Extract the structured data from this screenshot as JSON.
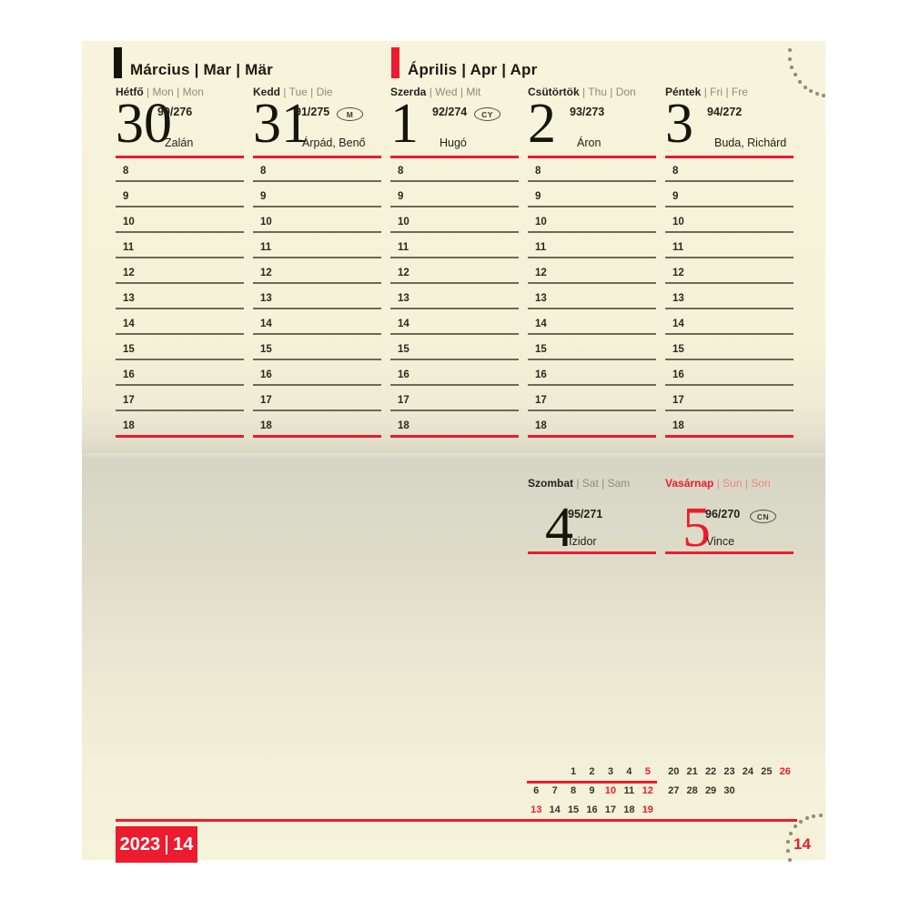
{
  "page": {
    "kind": "weekly-diary-page"
  },
  "colors": {
    "accent_red": "#ed1b2e",
    "ink": "#23221b",
    "muted_text": "#8e8d7b",
    "hour_line": "#6b6a58",
    "paper_cream": "#f5f2d7",
    "paper_shade": "#d6d4c3",
    "dot_gray": "#8f8e7d"
  },
  "months": {
    "march": {
      "title": "Március | Mar | Mär"
    },
    "april": {
      "title": "Április | Apr | Apr"
    }
  },
  "hours": [
    "8",
    "9",
    "10",
    "11",
    "12",
    "13",
    "14",
    "15",
    "16",
    "17",
    "18"
  ],
  "weekday_columns": [
    {
      "key": "monday",
      "day_hu": "Hétfő",
      "day_alt": "Mon | Mon",
      "date": "30",
      "day_of_year": "90/276",
      "badge": "",
      "name_day": "Zalán",
      "red": false
    },
    {
      "key": "tuesday",
      "day_hu": "Kedd",
      "day_alt": "Tue | Die",
      "date": "31",
      "day_of_year": "91/275",
      "badge": "M",
      "name_day": "Árpád, Benő",
      "red": false
    },
    {
      "key": "wednesday",
      "day_hu": "Szerda",
      "day_alt": "Wed | Mit",
      "date": "1",
      "day_of_year": "92/274",
      "badge": "CY",
      "name_day": "Hugó",
      "red": false
    },
    {
      "key": "thursday",
      "day_hu": "Csütörtök",
      "day_alt": "Thu | Don",
      "date": "2",
      "day_of_year": "93/273",
      "badge": "",
      "name_day": "Áron",
      "red": false
    },
    {
      "key": "friday",
      "day_hu": "Péntek",
      "day_alt": "Fri | Fre",
      "date": "3",
      "day_of_year": "94/272",
      "badge": "",
      "name_day": "Buda, Richárd",
      "red": false
    }
  ],
  "weekend_columns": [
    {
      "key": "saturday",
      "day_hu": "Szombat",
      "day_alt": "Sat | Sam",
      "date": "4",
      "day_of_year": "95/271",
      "badge": "",
      "name_day": "Izidor",
      "red": false
    },
    {
      "key": "sunday",
      "day_hu": "Vasárnap",
      "day_alt": "Sun | Son",
      "date": "5",
      "day_of_year": "96/270",
      "badge": "CN",
      "name_day": "Vince",
      "red": true
    }
  ],
  "mini_calendar": {
    "left_rows": [
      [
        "",
        "",
        "1",
        "2",
        "3",
        "4",
        "5"
      ],
      [
        "6",
        "7",
        "8",
        "9",
        "10",
        "11",
        "12"
      ],
      [
        "13",
        "14",
        "15",
        "16",
        "17",
        "18",
        "19"
      ]
    ],
    "right_rows": [
      [
        "20",
        "21",
        "22",
        "23",
        "24",
        "25",
        "26"
      ],
      [
        "27",
        "28",
        "29",
        "30",
        "",
        "",
        ""
      ]
    ],
    "red_days": [
      "5",
      "10",
      "12",
      "13",
      "19",
      "26"
    ],
    "current_week_underline_row": 0
  },
  "footer": {
    "year": "2023",
    "week": "14",
    "page_number": "14"
  }
}
